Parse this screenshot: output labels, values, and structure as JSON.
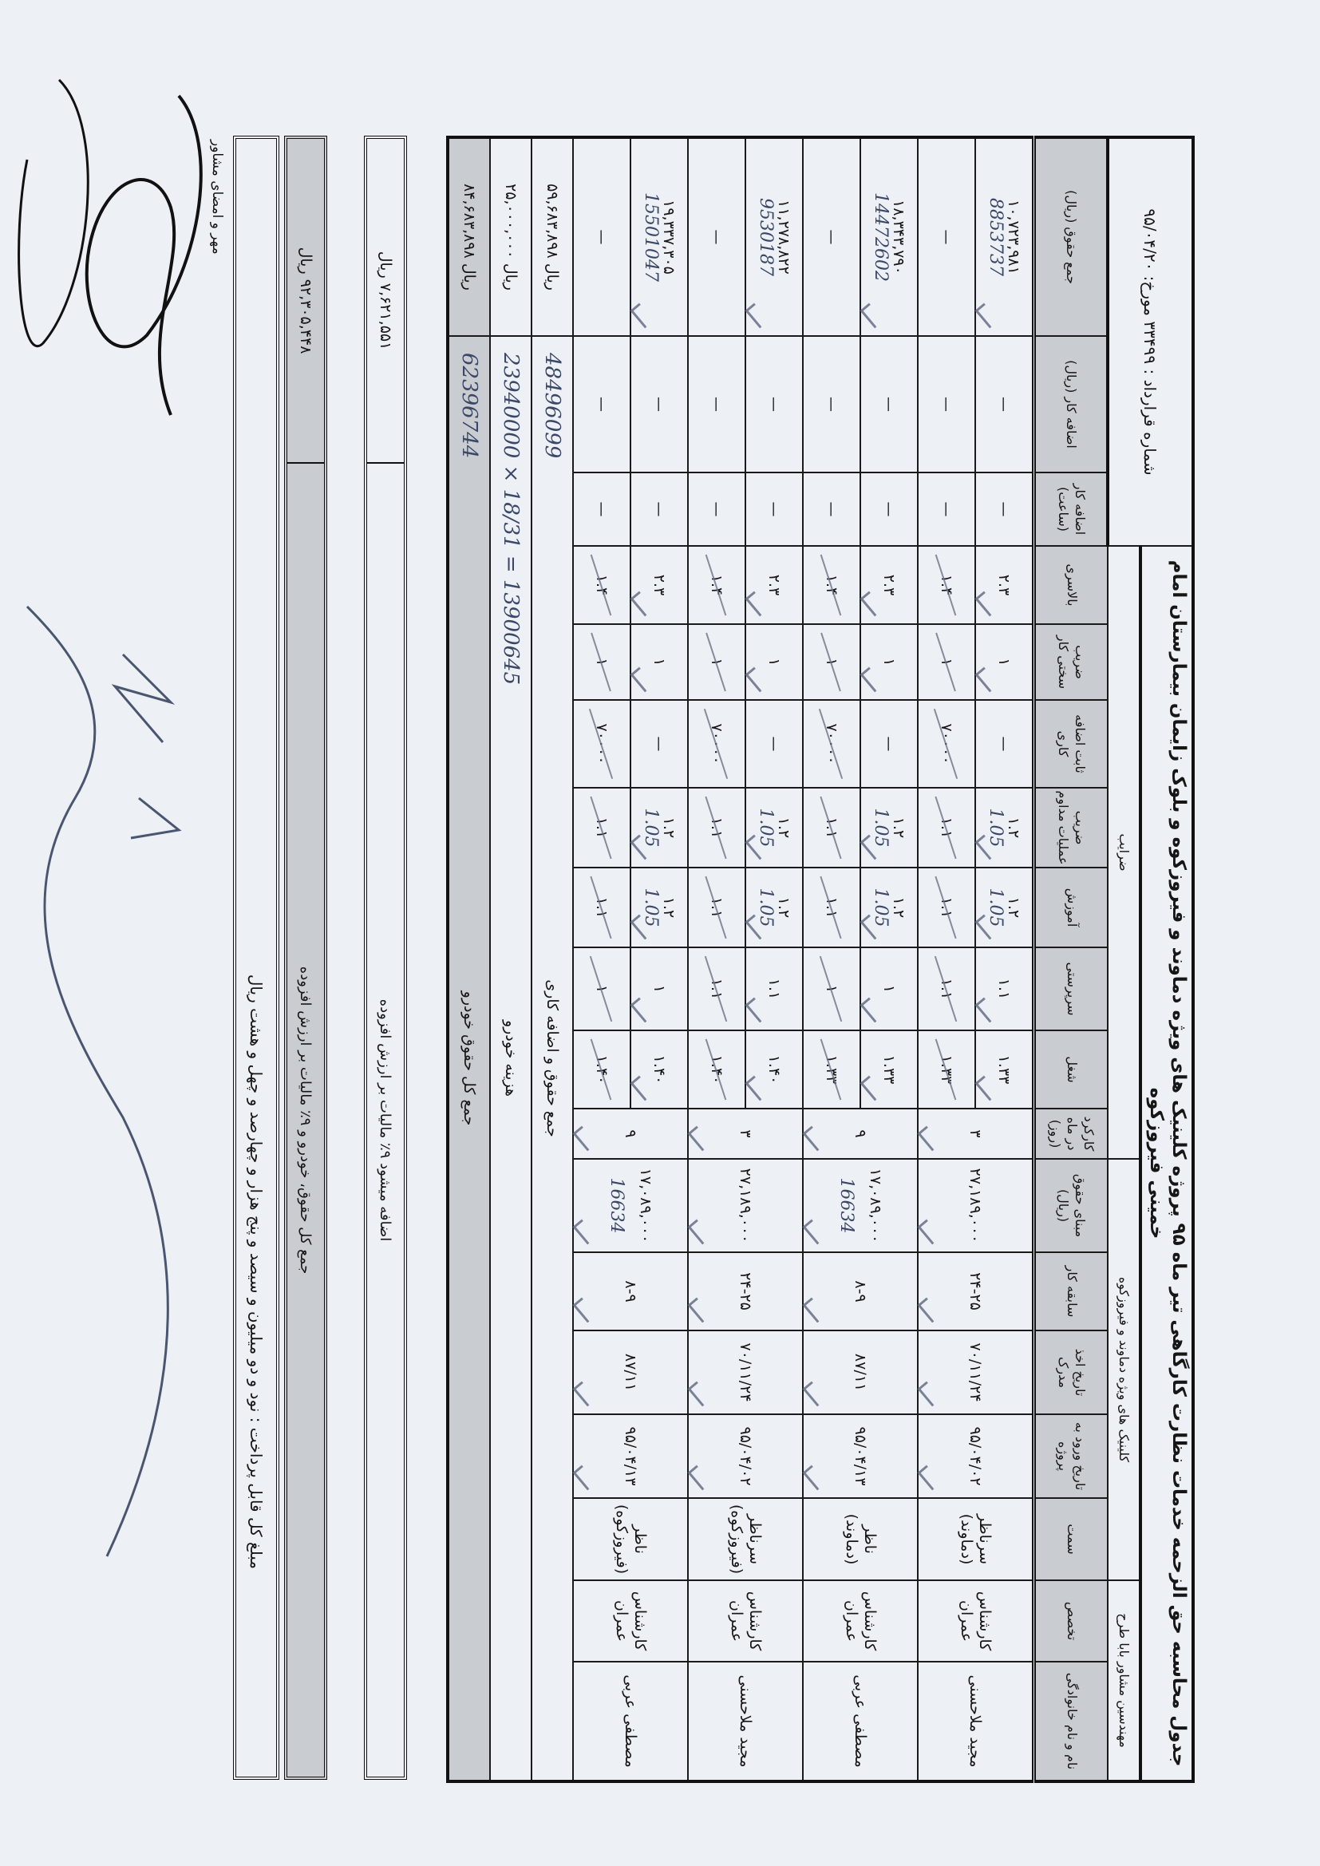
{
  "header": {
    "contract": "شماره قرارداد : ۳۳۴۹۹ مورخ: ۹۵/۰۴/۲۰",
    "title": "جدول محاسبه حق الزحمه خدمات نظارت کارگاهی تیر ماه ۹۵ پروژه کلینیک های ویژه دماوند و فیروزکوه و بلوک زایمان بیمارستان امام خمینی فیروزکوه",
    "coefficients": "ضرایب",
    "project": "کلینیک های ویژه دماوند و فیروزکوه",
    "consultant": "مهندسین مشاور بابا طرح"
  },
  "columns": [
    "جمع حقوق (ریال)",
    "اضافه کار (ریال)",
    "اضافه کار (ساعت)",
    "بالاسری",
    "ضریب سختی کار",
    "ثابت اضافه کاری",
    "ضریب عملیات مداوم",
    "آموزش",
    "سرپرستی",
    "شغل",
    "کارکرد در ماه (روز)",
    "مبنای حقوق (ریال)",
    "سابقه کار",
    "تاریخ اخذ مدرک",
    "تاریخ ورود به پروژه",
    "سمت",
    "تخصص",
    "نام و نام خانوادگی"
  ],
  "rows": [
    {
      "upper": [
        "۱۰,۷۲۳,۹۸۱",
        "—",
        "—",
        "۲.۳",
        "۱",
        "—",
        "۱.۲",
        "۱.۲",
        "۱.۱",
        "۱.۳۳"
      ],
      "lower": [
        "—",
        "—",
        "—",
        "۱.۴",
        "۱",
        "۷۰۰۰۰",
        "۱.۱",
        "۱.۱",
        "۱.۱",
        "۱.۳۳"
      ],
      "work_days": "۳",
      "base_salary": "۲۷,۱۸۹,۰۰۰",
      "experience": "۲۴-۲۵",
      "degree_date": "۷۰/۱۱/۲۴",
      "entry_date": "۹۵/۰۴/۰۲",
      "position": "سرناظر (دماوند)",
      "specialty": "کارشناس عمران",
      "name": "مجید ملاحسنی",
      "hand_total": "8853737",
      "hand_coef": "1.05"
    },
    {
      "upper": [
        "۱۸,۳۴۳,۷۹۰",
        "—",
        "—",
        "۲.۳",
        "۱",
        "—",
        "۱.۲",
        "۱.۲",
        "۱",
        "۱.۳۳"
      ],
      "lower": [
        "—",
        "—",
        "—",
        "۱.۴",
        "۱",
        "۷۰۰۰۰",
        "۱.۱",
        "۱.۱",
        "۱",
        "۱.۳۳"
      ],
      "work_days": "۹",
      "base_salary": "۱۷,۰۸۹,۰۰۰",
      "experience": "۸-۹",
      "degree_date": "۸۷/۱۱",
      "entry_date": "۹۵/۰۴/۱۳",
      "position": "ناظر (دماوند)",
      "specialty": "کارشناس عمران",
      "name": "مصطفی عربی",
      "hand_total": "14472602",
      "hand_coef": "1.05",
      "hand_base": "16634"
    },
    {
      "upper": [
        "۱۱,۲۷۸,۸۲۲",
        "—",
        "—",
        "۲.۳",
        "۱",
        "—",
        "۱.۲",
        "۱.۲",
        "۱.۱",
        "۱.۴۰"
      ],
      "lower": [
        "—",
        "—",
        "—",
        "۱.۴",
        "۱",
        "۷۰۰۰۰",
        "۱.۱",
        "۱.۱",
        "۱.۱",
        "۱.۴۰"
      ],
      "work_days": "۳",
      "base_salary": "۲۷,۱۸۹,۰۰۰",
      "experience": "۲۴-۲۵",
      "degree_date": "۷۰/۱۱/۲۴",
      "entry_date": "۹۵/۰۴/۰۲",
      "position": "سرناظر (فیروزکوه)",
      "specialty": "کارشناس عمران",
      "name": "مجید ملاحسنی",
      "hand_total": "9530187",
      "hand_coef": "1.05"
    },
    {
      "upper": [
        "۱۹,۳۳۷,۳۰۵",
        "—",
        "—",
        "۲.۳",
        "۱",
        "—",
        "۱.۲",
        "۱.۲",
        "۱",
        "۱.۴۰"
      ],
      "lower": [
        "—",
        "—",
        "—",
        "۱.۴",
        "۱",
        "۷۰۰۰۰",
        "۱.۱",
        "۱.۱",
        "۱",
        "۱.۴۰"
      ],
      "work_days": "۹",
      "base_salary": "۱۷,۰۸۹,۰۰۰",
      "experience": "۸-۹",
      "degree_date": "۸۷/۱۱",
      "entry_date": "۹۵/۰۴/۱۳",
      "position": "ناظر (فیروزکوه)",
      "specialty": "کارشناس عمران",
      "name": "مصطفی عربی",
      "hand_total": "15501047",
      "hand_coef": "1.05",
      "hand_base": "16634"
    }
  ],
  "summary": [
    {
      "label": "جمع حقوق و اضافه کاری",
      "value": "۵۹,۶۸۳,۸۹۸ ریال",
      "hand": "48496099"
    },
    {
      "label": "هزینه خودرو",
      "value": "۲۵,۰۰۰,۰۰۰ ریال",
      "hand": "23940000 × 18/31 = 13900645"
    },
    {
      "label": "جمع کل حقوق خودرو",
      "value": "۸۴,۶۸۳,۸۹۸ ریال",
      "hand": "62396744"
    }
  ],
  "vat": {
    "label": "اضافه میشود ۹٪ مالیات بر ارزش افزوده",
    "value": "۷,۶۲۱,۵۵۱ ریال"
  },
  "grand_total": {
    "label": "جمع کل حقوق، خودرو و ۹٪ مالیات بر ارزش افزوده",
    "value": "۹۲,۳۰۵,۴۴۸ ریال"
  },
  "amount_in_words": "مبلغ کل قابل پرداخت : نود و دو میلیون و سیصد و پنج هزار و چهارصد و چهل و هشت ریال",
  "stamp_label": "مهر و امضای مشاور",
  "colors": {
    "paper": "#edf0f5",
    "header_shade": "#c9ccd1",
    "ink": "#161616",
    "pen": "#3a4766"
  }
}
